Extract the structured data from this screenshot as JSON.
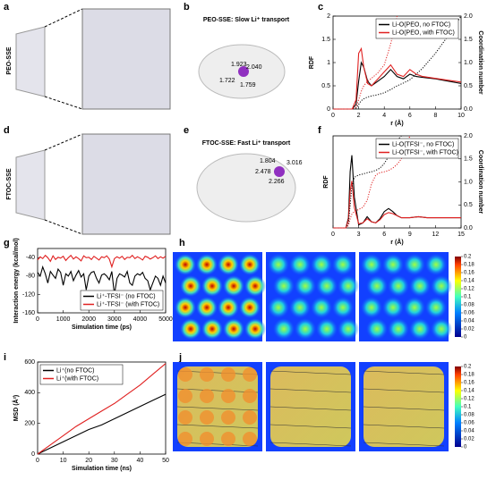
{
  "figure": {
    "a": {
      "label": "a",
      "sample": "PEO-SSE"
    },
    "b": {
      "label": "b",
      "title": "PEO-SSE: Slow Li⁺ transport",
      "distances": [
        "1.923",
        "2.040",
        "1.722",
        "1.759"
      ]
    },
    "c": {
      "label": "c"
    },
    "d": {
      "label": "d",
      "sample": "FTOC-SSE"
    },
    "e": {
      "label": "e",
      "title": "FTOC-SSE: Fast Li⁺ transport",
      "distances": [
        "1.804",
        "3.016",
        "2.478",
        "2.266"
      ]
    },
    "f": {
      "label": "f"
    },
    "g": {
      "label": "g"
    },
    "h": {
      "label": "h",
      "colorbar_ticks": [
        0.2,
        0.18,
        0.16,
        0.14,
        0.12,
        0.1,
        0.08,
        0.06,
        0.04,
        0.02,
        0
      ]
    },
    "i": {
      "label": "i"
    },
    "j": {
      "label": "j",
      "colorbar_ticks": [
        0.2,
        0.18,
        0.16,
        0.14,
        0.12,
        0.1,
        0.08,
        0.06,
        0.04,
        0.02,
        0
      ]
    }
  },
  "chart_data": [
    {
      "type": "line",
      "xlabel": "r (Å)",
      "ylabel": "RDF",
      "y2label": "Coordination number",
      "legend": "upper right",
      "xlim": [
        0,
        10
      ],
      "xticks": [
        0,
        2,
        4,
        6,
        8,
        10
      ],
      "ylim": [
        0,
        2
      ],
      "yticks": [
        0,
        0.5,
        1,
        1.5,
        2
      ],
      "y2lim": [
        0,
        2
      ],
      "y2ticks": [
        {
          "value": 0,
          "label": "0.0"
        },
        0.5,
        {
          "value": 1,
          "label": "1.0"
        },
        1.5,
        {
          "value": 2,
          "label": "2.0"
        }
      ],
      "x": [
        0,
        1.5,
        1.8,
        2.0,
        2.2,
        2.4,
        2.7,
        3,
        3.5,
        4,
        4.5,
        5,
        5.5,
        6,
        6.5,
        7,
        8,
        9,
        10
      ],
      "series": [
        {
          "name": "Li-O(PEO, no FTOC)",
          "color": "#000000",
          "values": [
            0,
            0,
            0.1,
            0.6,
            1.0,
            0.9,
            0.6,
            0.5,
            0.6,
            0.7,
            0.85,
            0.7,
            0.65,
            0.75,
            0.7,
            0.68,
            0.65,
            0.6,
            0.55
          ]
        },
        {
          "name": "Li-O(PEO, with FTOC)",
          "color": "#e02020",
          "values": [
            0,
            0,
            0.2,
            1.2,
            1.3,
            0.9,
            0.55,
            0.5,
            0.65,
            0.8,
            0.95,
            0.75,
            0.7,
            0.85,
            0.75,
            0.7,
            0.66,
            0.62,
            0.58
          ]
        },
        {
          "color": "#000000",
          "dash": "dotted",
          "axis": "y2",
          "values": [
            0,
            0,
            0.02,
            0.1,
            0.18,
            0.22,
            0.26,
            0.28,
            0.31,
            0.35,
            0.42,
            0.5,
            0.56,
            0.63,
            0.75,
            0.88,
            1.2,
            1.58,
            2.0
          ]
        },
        {
          "color": "#e02020",
          "dash": "dotted",
          "axis": "y2",
          "values": [
            0,
            0,
            0.04,
            0.2,
            0.38,
            0.5,
            0.6,
            0.66,
            0.78,
            0.95,
            1.4,
            2.0,
            null,
            null,
            null,
            null,
            null,
            null,
            null
          ]
        }
      ]
    },
    {
      "type": "line",
      "xlabel": "r (Å)",
      "ylabel": "RDF",
      "y2label": "Coordination number",
      "legend": "upper right",
      "xlim": [
        0,
        15
      ],
      "xticks": [
        0,
        3,
        6,
        9,
        12,
        15
      ],
      "ylim": [
        0,
        9
      ],
      "y2lim": [
        0,
        2
      ],
      "y2ticks": [
        {
          "value": 0,
          "label": "0.0"
        },
        0.5,
        {
          "value": 1,
          "label": "1.0"
        },
        1.5,
        {
          "value": 2,
          "label": "2.0"
        }
      ],
      "x": [
        0,
        1.5,
        1.8,
        2,
        2.2,
        2.5,
        3,
        3.5,
        4,
        4.5,
        5,
        5.5,
        6,
        6.5,
        7,
        7.5,
        8,
        9,
        10,
        11,
        12,
        13,
        14,
        15
      ],
      "series": [
        {
          "name": "Li-O(TFSI⁻, no FTOC)",
          "color": "#000000",
          "values": [
            0,
            0,
            1.0,
            5.5,
            7.1,
            3.0,
            0.3,
            0.5,
            1.1,
            0.6,
            0.5,
            0.9,
            1.6,
            1.9,
            1.6,
            1.2,
            1.0,
            1.0,
            1.1,
            1.0,
            1.0,
            1.0,
            1.0,
            1.0
          ]
        },
        {
          "name": "Li-O(TFSI⁻, with FTOC)",
          "color": "#e02020",
          "values": [
            0,
            0,
            0.8,
            3.6,
            4.6,
            2.0,
            0.4,
            0.5,
            0.9,
            0.6,
            0.5,
            0.8,
            1.3,
            1.5,
            1.4,
            1.2,
            1.0,
            1.0,
            1.1,
            1.0,
            1.0,
            1.0,
            1.0,
            1.0
          ]
        },
        {
          "color": "#000000",
          "dash": "dotted",
          "axis": "y2",
          "values": [
            0,
            0,
            0.1,
            0.5,
            0.9,
            1.1,
            1.15,
            1.17,
            1.2,
            1.22,
            1.25,
            1.3,
            1.4,
            1.55,
            1.75,
            1.9,
            2.0,
            null,
            null,
            null,
            null,
            null,
            null,
            null
          ]
        },
        {
          "color": "#e02020",
          "dash": "dotted",
          "axis": "y2",
          "values": [
            0,
            0,
            0.05,
            0.2,
            0.3,
            0.36,
            0.4,
            0.45,
            0.6,
            0.95,
            1.15,
            1.2,
            1.22,
            1.25,
            1.3,
            1.38,
            1.5,
            2.0,
            null,
            null,
            null,
            null,
            null,
            null
          ]
        }
      ]
    },
    {
      "type": "line",
      "xlabel": "Simulation time (ps)",
      "ylabel": "Interaction energy (kcal/mol)",
      "legend": "lower right",
      "xlim": [
        0,
        5000
      ],
      "xticks": [
        0,
        1000,
        2000,
        3000,
        4000,
        5000
      ],
      "ylim": [
        -160,
        -20
      ],
      "yticks": [
        -40,
        -80,
        -120,
        -160
      ],
      "x": [
        0,
        100,
        200,
        300,
        400,
        500,
        600,
        700,
        800,
        900,
        1000,
        1100,
        1200,
        1300,
        1400,
        1500,
        1600,
        1700,
        1800,
        1900,
        2000,
        2100,
        2200,
        2300,
        2400,
        2500,
        2600,
        2700,
        2800,
        2900,
        3000,
        3100,
        3200,
        3300,
        3400,
        3500,
        3600,
        3700,
        3800,
        3900,
        4000,
        4100,
        4200,
        4300,
        4400,
        4500,
        4600,
        4700,
        4800,
        4900,
        5000
      ],
      "series": [
        {
          "name": "Li⁺-TFSI⁻ (no FTOC)",
          "color": "#000000",
          "values": [
            -72,
            -80,
            -60,
            -75,
            -95,
            -70,
            -78,
            -85,
            -65,
            -72,
            -100,
            -75,
            -80,
            -70,
            -90,
            -78,
            -68,
            -82,
            -75,
            -110,
            -80,
            -72,
            -70,
            -85,
            -95,
            -78,
            -75,
            -80,
            -88,
            -70,
            -120,
            -85,
            -75,
            -78,
            -82,
            -70,
            -95,
            -100,
            -80,
            -75,
            -78,
            -72,
            -85,
            -90,
            -110,
            -95,
            -80,
            -85,
            -100,
            -80,
            -95
          ]
        },
        {
          "name": "Li⁺-TFSI⁻ (with FTOC)",
          "color": "#e02020",
          "values": [
            -45,
            -38,
            -42,
            -35,
            -40,
            -48,
            -36,
            -44,
            -39,
            -41,
            -37,
            -46,
            -40,
            -35,
            -43,
            -38,
            -42,
            -47,
            -36,
            -40,
            -39,
            -44,
            -37,
            -41,
            -45,
            -38,
            -40,
            -36,
            -43,
            -60,
            -42,
            -38,
            -41,
            -37,
            -44,
            -39,
            -40,
            -35,
            -42,
            -38,
            -41,
            -45,
            -37,
            -39,
            -43,
            -40,
            -36,
            -42,
            -38,
            -41,
            -37
          ]
        }
      ]
    },
    {
      "type": "line",
      "xlabel": "Simulation time (ns)",
      "ylabel": "MSD (Å²)",
      "legend": "upper left",
      "xlim": [
        0,
        50
      ],
      "xticks": [
        0,
        10,
        20,
        30,
        40,
        50
      ],
      "ylim": [
        0,
        600
      ],
      "yticks": [
        0,
        200,
        400,
        600
      ],
      "x": [
        0,
        5,
        10,
        15,
        20,
        25,
        30,
        35,
        40,
        45,
        50
      ],
      "series": [
        {
          "name": "Li⁺(no FTOC)",
          "color": "#000000",
          "values": [
            0,
            40,
            80,
            120,
            160,
            190,
            230,
            270,
            310,
            350,
            390
          ]
        },
        {
          "name": "Li⁺(with FTOC)",
          "color": "#e02020",
          "values": [
            0,
            60,
            120,
            180,
            230,
            280,
            330,
            390,
            450,
            520,
            590
          ]
        }
      ]
    }
  ]
}
